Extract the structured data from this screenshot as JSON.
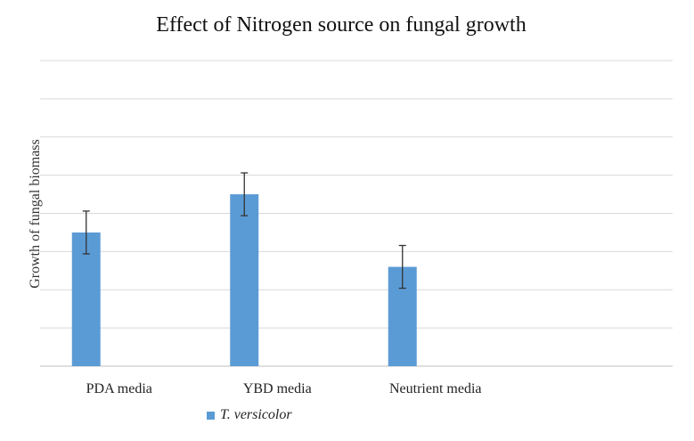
{
  "chart_data": {
    "type": "bar",
    "title": "Effect of Nitrogen source on fungal growth",
    "ylabel": "Growth of fungal biomass",
    "xlabel": "",
    "categories": [
      "PDA media",
      "YBD media",
      "Neutrient media",
      ""
    ],
    "series": [
      {
        "name": "T. versicolor",
        "values": [
          3.5,
          4.5,
          2.6,
          null
        ],
        "error": [
          0.56,
          0.56,
          0.56,
          null
        ],
        "color": "#5b9bd5"
      }
    ],
    "ylim": [
      0,
      8
    ],
    "y_tick_labels_shown": false,
    "grid": true,
    "legend": "bottom-left"
  }
}
